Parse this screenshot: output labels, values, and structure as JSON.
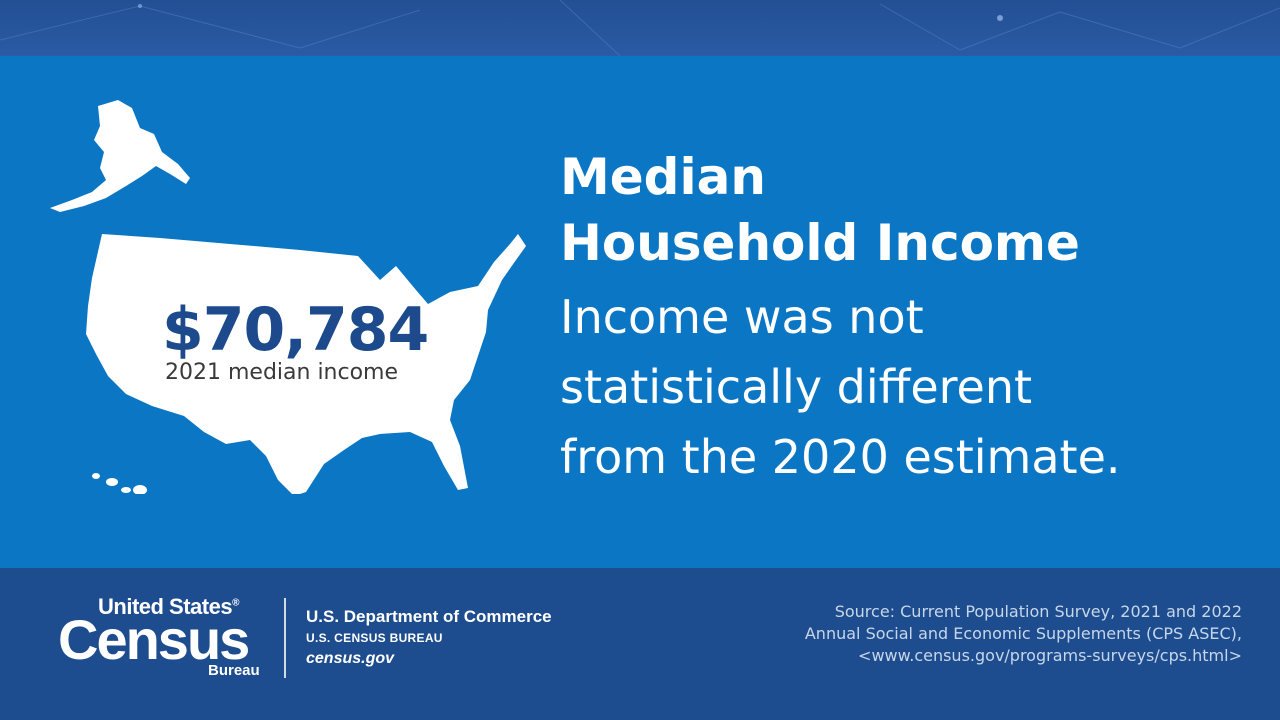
{
  "infographic": {
    "amount": "$70,784",
    "amount_caption": "2021 median income",
    "headline": [
      "Median",
      "Household Income"
    ],
    "subtext": [
      "Income was not",
      "statistically different",
      "from the 2020 estimate."
    ]
  },
  "footer": {
    "logo": {
      "line1": "United States",
      "registered": "®",
      "line2": "Census",
      "line3": "Bureau"
    },
    "department": "U.S. Department of Commerce",
    "bureau": "U.S. CENSUS BUREAU",
    "website": "census.gov",
    "source": [
      "Source: Current Population Survey, 2021 and 2022",
      "Annual Social and Economic Supplements (CPS ASEC),",
      "<www.census.gov/programs-surveys/cps.html>"
    ]
  },
  "colors": {
    "panel_blue": "#0b76c4",
    "footer_blue": "#1d4d8e",
    "amount_navy": "#1c4a8c",
    "white": "#ffffff"
  },
  "icons": {
    "map": "us-map-icon"
  }
}
